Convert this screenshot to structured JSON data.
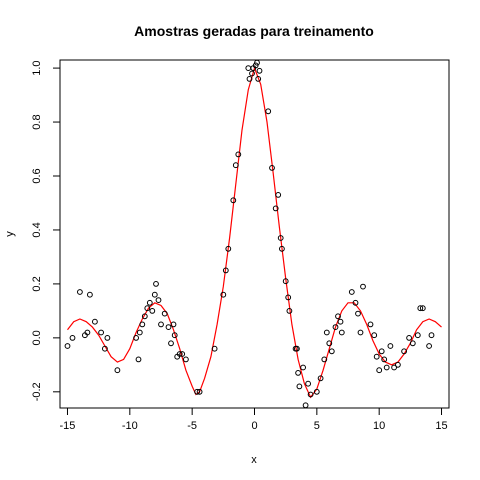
{
  "chart_data": {
    "type": "scatter",
    "title": "Amostras geradas para treinamento",
    "xlabel": "x",
    "ylabel": "y",
    "xlim": [
      -15.6,
      15.6
    ],
    "ylim": [
      -0.26,
      1.03
    ],
    "x_ticks": [
      -15,
      -10,
      -5,
      0,
      5,
      10,
      15
    ],
    "x_tick_labels": [
      "-15",
      "-10",
      "-5",
      "0",
      "5",
      "10",
      "15"
    ],
    "y_ticks": [
      -0.2,
      0.0,
      0.2,
      0.4,
      0.6,
      0.8,
      1.0
    ],
    "y_tick_labels": [
      "-0.2",
      "0.0",
      "0.2",
      "0.4",
      "0.6",
      "0.8",
      "1.0"
    ],
    "grid": false,
    "colors": {
      "points": "#000000",
      "curve": "#ff0000",
      "axes": "#000000"
    },
    "series": [
      {
        "kind": "points",
        "points": [
          [
            -15.0,
            -0.03
          ],
          [
            -14.6,
            0.0
          ],
          [
            -14.0,
            0.17
          ],
          [
            -13.6,
            0.01
          ],
          [
            -13.4,
            0.02
          ],
          [
            -13.2,
            0.16
          ],
          [
            -12.8,
            0.06
          ],
          [
            -12.3,
            0.02
          ],
          [
            -12.0,
            -0.04
          ],
          [
            -11.8,
            0.0
          ],
          [
            -11.0,
            -0.12
          ],
          [
            -9.5,
            0.0
          ],
          [
            -9.3,
            -0.08
          ],
          [
            -9.2,
            0.02
          ],
          [
            -9.0,
            0.05
          ],
          [
            -8.8,
            0.08
          ],
          [
            -8.6,
            0.11
          ],
          [
            -8.4,
            0.13
          ],
          [
            -8.2,
            0.1
          ],
          [
            -8.0,
            0.16
          ],
          [
            -7.9,
            0.2
          ],
          [
            -7.7,
            0.14
          ],
          [
            -7.5,
            0.05
          ],
          [
            -7.2,
            0.09
          ],
          [
            -6.9,
            0.04
          ],
          [
            -6.7,
            -0.02
          ],
          [
            -6.5,
            0.05
          ],
          [
            -6.4,
            0.01
          ],
          [
            -6.2,
            -0.07
          ],
          [
            -6.0,
            -0.06
          ],
          [
            -5.8,
            -0.06
          ],
          [
            -5.5,
            -0.08
          ],
          [
            -4.6,
            -0.2
          ],
          [
            -4.4,
            -0.2
          ],
          [
            -3.2,
            -0.04
          ],
          [
            -2.5,
            0.16
          ],
          [
            -2.3,
            0.25
          ],
          [
            -2.1,
            0.33
          ],
          [
            -1.7,
            0.51
          ],
          [
            -1.5,
            0.64
          ],
          [
            -1.3,
            0.68
          ],
          [
            -0.5,
            1.0
          ],
          [
            -0.4,
            0.96
          ],
          [
            -0.2,
            0.98
          ],
          [
            -0.1,
            1.0
          ],
          [
            0.1,
            1.01
          ],
          [
            0.2,
            1.02
          ],
          [
            0.3,
            0.96
          ],
          [
            0.4,
            0.99
          ],
          [
            1.1,
            0.84
          ],
          [
            1.4,
            0.63
          ],
          [
            1.7,
            0.48
          ],
          [
            1.9,
            0.53
          ],
          [
            2.1,
            0.37
          ],
          [
            2.2,
            0.33
          ],
          [
            2.5,
            0.21
          ],
          [
            2.7,
            0.15
          ],
          [
            2.8,
            0.1
          ],
          [
            3.3,
            -0.04
          ],
          [
            3.4,
            -0.04
          ],
          [
            3.5,
            -0.13
          ],
          [
            3.6,
            -0.18
          ],
          [
            3.9,
            -0.11
          ],
          [
            4.1,
            -0.25
          ],
          [
            4.3,
            -0.17
          ],
          [
            4.5,
            -0.21
          ],
          [
            5.0,
            -0.2
          ],
          [
            5.3,
            -0.15
          ],
          [
            5.6,
            -0.08
          ],
          [
            5.8,
            0.02
          ],
          [
            6.0,
            -0.02
          ],
          [
            6.2,
            -0.05
          ],
          [
            6.5,
            0.04
          ],
          [
            6.7,
            0.08
          ],
          [
            6.9,
            0.06
          ],
          [
            7.0,
            0.02
          ],
          [
            7.8,
            0.17
          ],
          [
            8.1,
            0.13
          ],
          [
            8.3,
            0.09
          ],
          [
            8.5,
            0.02
          ],
          [
            8.7,
            0.19
          ],
          [
            9.3,
            0.05
          ],
          [
            9.6,
            0.01
          ],
          [
            9.8,
            -0.07
          ],
          [
            10.0,
            -0.12
          ],
          [
            10.2,
            -0.05
          ],
          [
            10.4,
            -0.08
          ],
          [
            10.6,
            -0.11
          ],
          [
            10.9,
            -0.03
          ],
          [
            11.2,
            -0.11
          ],
          [
            11.5,
            -0.1
          ],
          [
            12.0,
            -0.05
          ],
          [
            12.4,
            0.0
          ],
          [
            12.7,
            -0.02
          ],
          [
            13.1,
            0.01
          ],
          [
            13.3,
            0.11
          ],
          [
            13.5,
            0.11
          ],
          [
            14.0,
            -0.03
          ],
          [
            14.2,
            0.01
          ]
        ]
      },
      {
        "kind": "line",
        "points": [
          [
            -15.0,
            0.03
          ],
          [
            -14.5,
            0.06
          ],
          [
            -14.0,
            0.07
          ],
          [
            -13.5,
            0.06
          ],
          [
            -13.0,
            0.04
          ],
          [
            -12.5,
            0.01
          ],
          [
            -12.0,
            -0.03
          ],
          [
            -11.5,
            -0.07
          ],
          [
            -11.0,
            -0.09
          ],
          [
            -10.5,
            -0.08
          ],
          [
            -10.0,
            -0.04
          ],
          [
            -9.5,
            0.02
          ],
          [
            -9.0,
            0.07
          ],
          [
            -8.5,
            0.11
          ],
          [
            -8.0,
            0.13
          ],
          [
            -7.5,
            0.12
          ],
          [
            -7.0,
            0.09
          ],
          [
            -6.5,
            0.03
          ],
          [
            -6.0,
            -0.04
          ],
          [
            -5.5,
            -0.12
          ],
          [
            -5.0,
            -0.18
          ],
          [
            -4.7,
            -0.21
          ],
          [
            -4.4,
            -0.2
          ],
          [
            -4.0,
            -0.15
          ],
          [
            -3.5,
            -0.07
          ],
          [
            -3.0,
            0.05
          ],
          [
            -2.5,
            0.19
          ],
          [
            -2.0,
            0.37
          ],
          [
            -1.5,
            0.57
          ],
          [
            -1.0,
            0.77
          ],
          [
            -0.5,
            0.92
          ],
          [
            0.0,
            1.0
          ],
          [
            0.5,
            0.94
          ],
          [
            1.0,
            0.8
          ],
          [
            1.5,
            0.61
          ],
          [
            2.0,
            0.41
          ],
          [
            2.5,
            0.22
          ],
          [
            3.0,
            0.05
          ],
          [
            3.5,
            -0.08
          ],
          [
            4.0,
            -0.17
          ],
          [
            4.5,
            -0.22
          ],
          [
            5.0,
            -0.19
          ],
          [
            5.5,
            -0.12
          ],
          [
            6.0,
            -0.04
          ],
          [
            6.5,
            0.04
          ],
          [
            7.0,
            0.1
          ],
          [
            7.5,
            0.13
          ],
          [
            8.0,
            0.13
          ],
          [
            8.5,
            0.1
          ],
          [
            9.0,
            0.05
          ],
          [
            9.5,
            -0.01
          ],
          [
            10.0,
            -0.06
          ],
          [
            10.5,
            -0.09
          ],
          [
            11.0,
            -0.1
          ],
          [
            11.5,
            -0.09
          ],
          [
            12.0,
            -0.06
          ],
          [
            12.5,
            -0.02
          ],
          [
            13.0,
            0.03
          ],
          [
            13.5,
            0.06
          ],
          [
            14.0,
            0.07
          ],
          [
            14.5,
            0.06
          ],
          [
            15.0,
            0.04
          ]
        ]
      }
    ]
  }
}
